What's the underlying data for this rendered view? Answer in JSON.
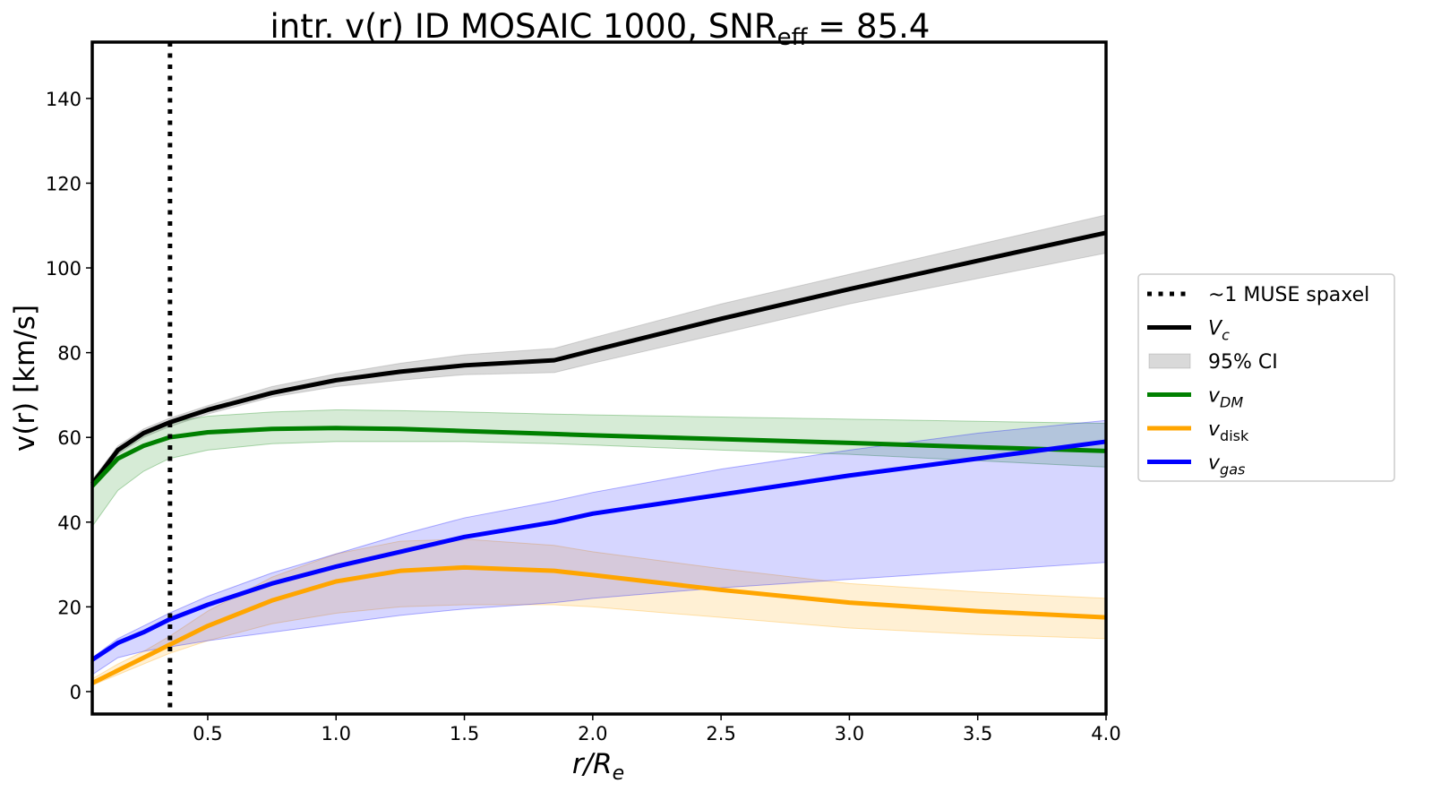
{
  "chart_data": {
    "type": "line",
    "title": "intr. v(r) ID MOSAIC 1000, SNR",
    "title_sub": "eff",
    "title_tail": " = 85.4",
    "xlabel": "r/R",
    "xlabel_sub": "e",
    "ylabel": "v(r) [km/s]",
    "xlim": [
      0.05,
      4.0
    ],
    "ylim": [
      -5.3,
      153.3
    ],
    "xticks": [
      0.5,
      1.0,
      1.5,
      2.0,
      2.5,
      3.0,
      3.5,
      4.0
    ],
    "xtick_labels": [
      "0.5",
      "1.0",
      "1.5",
      "2.0",
      "2.5",
      "3.0",
      "3.5",
      "4.0"
    ],
    "yticks": [
      0,
      20,
      40,
      60,
      80,
      100,
      120,
      140
    ],
    "ytick_labels": [
      "0",
      "20",
      "40",
      "60",
      "80",
      "100",
      "120",
      "140"
    ],
    "grid": false,
    "legend_placement": "outside-right",
    "vline": {
      "x": 0.353,
      "label": "~1 MUSE spaxel"
    },
    "x": [
      0.05,
      0.15,
      0.25,
      0.35,
      0.5,
      0.75,
      1.0,
      1.25,
      1.5,
      1.85,
      2.0,
      2.5,
      3.0,
      3.5,
      4.0
    ],
    "series": [
      {
        "name": "V",
        "sub": "c",
        "color": "#000000",
        "band_color": "#808080",
        "band_opacity": 0.3,
        "values": [
          49,
          57,
          61,
          63.5,
          66.5,
          70.5,
          73.5,
          75.5,
          77,
          78.2,
          80.5,
          88,
          95,
          101.7,
          108.3
        ],
        "lo": [
          48,
          56,
          60,
          62.5,
          65.5,
          69.5,
          72,
          73.5,
          74.8,
          75.3,
          77.5,
          84.5,
          91.5,
          97.5,
          103.5
        ],
        "hi": [
          50,
          58,
          62,
          64.5,
          67.5,
          72,
          75,
          77.5,
          79.5,
          81,
          83.5,
          91.5,
          98.5,
          105.5,
          112.5
        ]
      },
      {
        "name": "v",
        "sub": "DM",
        "color": "#008000",
        "band_color": "#008000",
        "band_opacity": 0.16,
        "values": [
          48.5,
          55,
          58,
          60,
          61.2,
          62,
          62.2,
          62,
          61.5,
          60.8,
          60.5,
          59.6,
          58.7,
          57.7,
          56.8
        ],
        "lo": [
          39,
          47.5,
          52,
          55,
          57,
          58.5,
          59,
          59,
          59,
          58.5,
          58.2,
          57,
          56,
          54.5,
          53
        ],
        "hi": [
          50,
          57,
          61,
          63.5,
          65,
          66,
          66.5,
          66.3,
          66,
          65.5,
          65.3,
          64.8,
          64.3,
          63.8,
          63.3
        ]
      },
      {
        "name": "v",
        "sub": "disk",
        "color": "#FFA500",
        "band_color": "#FFA500",
        "band_opacity": 0.17,
        "values": [
          2,
          5,
          8,
          11,
          15.5,
          21.5,
          26,
          28.5,
          29.3,
          28.5,
          27.5,
          24,
          21,
          19,
          17.5
        ],
        "lo": [
          1.5,
          4,
          6.5,
          9,
          12,
          16,
          18.5,
          20,
          20.5,
          20.5,
          20,
          17.5,
          15,
          13.5,
          12.5
        ],
        "hi": [
          3,
          6.5,
          9.5,
          13,
          19,
          27,
          32.5,
          35.5,
          36,
          34.5,
          33,
          29,
          25.5,
          23.5,
          22
        ]
      },
      {
        "name": "v",
        "sub": "gas",
        "color": "#0000FF",
        "band_color": "#0000FF",
        "band_opacity": 0.16,
        "values": [
          7.5,
          11.5,
          14,
          17,
          20.5,
          25.5,
          29.5,
          33,
          36.5,
          40,
          42,
          46.5,
          51,
          55,
          59
        ],
        "lo": [
          4,
          8,
          9.5,
          10.5,
          12,
          14,
          16,
          18,
          19.5,
          21,
          22,
          24.5,
          26.5,
          28.5,
          30.5
        ],
        "hi": [
          8,
          12.5,
          15.5,
          18.5,
          22.5,
          28,
          32.5,
          37,
          41,
          45,
          47,
          52.5,
          57,
          61,
          64
        ]
      }
    ],
    "legend": [
      {
        "label": "~1 MUSE spaxel",
        "kind": "dotted"
      },
      {
        "label": "V",
        "sub": "c",
        "kind": "line",
        "color": "#000000"
      },
      {
        "label": "95% CI",
        "kind": "patch"
      },
      {
        "label": "v",
        "sub": "DM",
        "kind": "line",
        "color": "#008000"
      },
      {
        "label": "v",
        "sub": "disk",
        "kind": "line",
        "color": "#FFA500"
      },
      {
        "label": "v",
        "sub": "gas",
        "kind": "line",
        "color": "#0000FF"
      }
    ]
  }
}
